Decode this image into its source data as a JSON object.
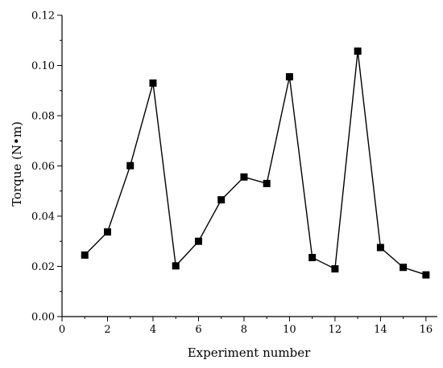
{
  "chart_data": {
    "type": "line",
    "title": "",
    "xlabel": "Experiment number",
    "ylabel": "Torque (N•m)",
    "xlim": [
      0,
      16.5
    ],
    "ylim": [
      0,
      0.12
    ],
    "xticks": [
      0,
      2,
      4,
      6,
      8,
      10,
      12,
      14,
      16
    ],
    "xtick_labels": [
      "0",
      "2",
      "4",
      "6",
      "8",
      "10",
      "12",
      "14",
      "16"
    ],
    "yticks": [
      0,
      0.02,
      0.04,
      0.06,
      0.08,
      0.1,
      0.12
    ],
    "ytick_labels": [
      "0.00",
      "0.02",
      "0.04",
      "0.06",
      "0.08",
      "0.10",
      "0.12"
    ],
    "grid": false,
    "marker": "square",
    "series": [
      {
        "x": [
          1,
          2,
          3,
          4,
          5,
          6,
          7,
          8,
          9,
          10,
          11,
          12,
          13,
          14,
          15,
          16
        ],
        "values": [
          0.0245,
          0.0337,
          0.0601,
          0.093,
          0.0202,
          0.03,
          0.0465,
          0.0556,
          0.053,
          0.0955,
          0.0235,
          0.019,
          0.1057,
          0.0275,
          0.0196,
          0.0166
        ],
        "color": "#000000"
      }
    ]
  }
}
